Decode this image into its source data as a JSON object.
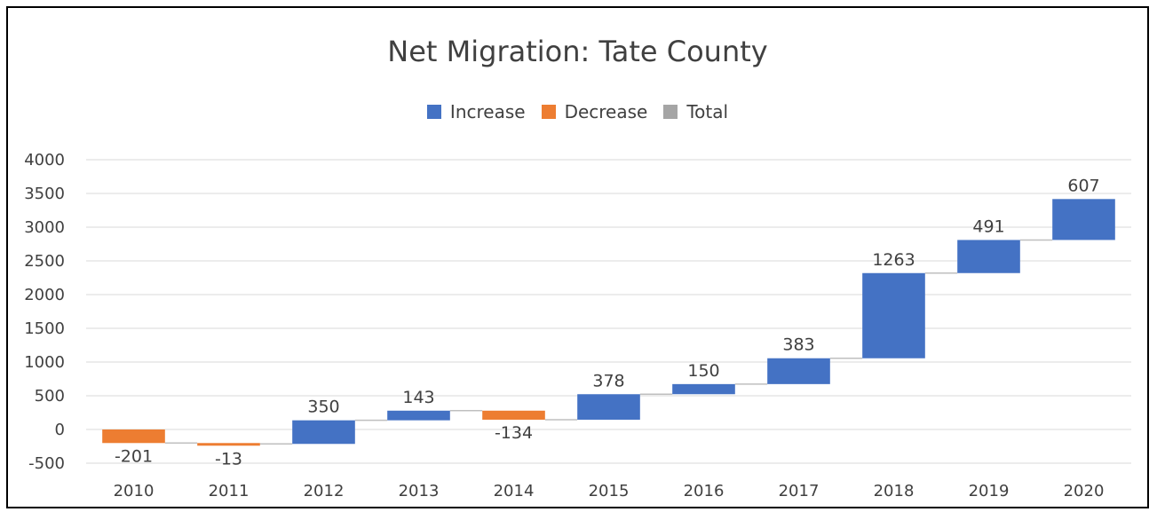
{
  "chart_data": {
    "type": "bar",
    "subtype": "waterfall",
    "title": "Net Migration: Tate County",
    "xlabel": "",
    "ylabel": "",
    "categories": [
      "2010",
      "2011",
      "2012",
      "2013",
      "2014",
      "2015",
      "2016",
      "2017",
      "2018",
      "2019",
      "2020"
    ],
    "values": [
      -201,
      -13,
      350,
      143,
      -134,
      378,
      150,
      383,
      1263,
      491,
      607
    ],
    "data_labels": [
      "-201",
      "-13",
      "350",
      "143",
      "-134",
      "378",
      "150",
      "383",
      "1263",
      "491",
      "607"
    ],
    "ylim": [
      -500,
      4000
    ],
    "yticks": [
      4000,
      3500,
      3000,
      2500,
      2000,
      1500,
      1000,
      500,
      0,
      -500
    ],
    "grid": true,
    "legend_position": "top",
    "legend": [
      {
        "label": "Increase",
        "color": "#4472c4"
      },
      {
        "label": "Decrease",
        "color": "#ed7d31"
      },
      {
        "label": "Total",
        "color": "#a5a5a5"
      }
    ]
  }
}
